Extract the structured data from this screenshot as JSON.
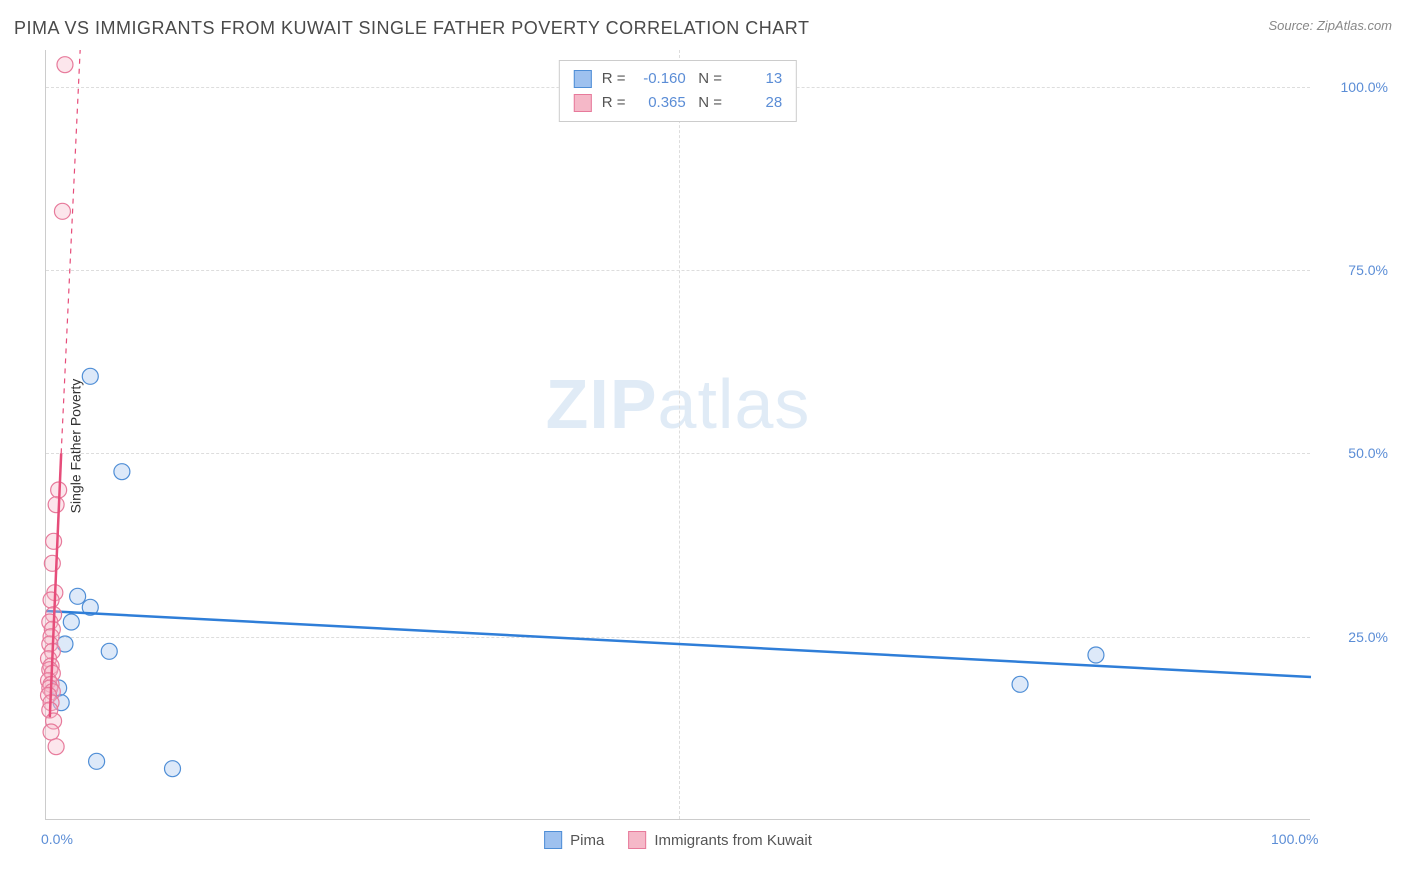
{
  "title": "PIMA VS IMMIGRANTS FROM KUWAIT SINGLE FATHER POVERTY CORRELATION CHART",
  "source": "Source: ZipAtlas.com",
  "watermark_bold": "ZIP",
  "watermark_light": "atlas",
  "ylabel": "Single Father Poverty",
  "chart": {
    "type": "scatter",
    "xlim": [
      0,
      100
    ],
    "ylim": [
      0,
      105
    ],
    "x_ticks": [
      {
        "value": 0,
        "label": "0.0%"
      },
      {
        "value": 100,
        "label": "100.0%"
      }
    ],
    "x_minor_ticks": [
      50
    ],
    "y_ticks": [
      {
        "value": 25,
        "label": "25.0%"
      },
      {
        "value": 50,
        "label": "50.0%"
      },
      {
        "value": 75,
        "label": "75.0%"
      },
      {
        "value": 100,
        "label": "100.0%"
      }
    ],
    "grid_color": "#dddddd",
    "background_color": "#ffffff",
    "marker_radius": 8,
    "marker_stroke_width": 1.2,
    "marker_fill_opacity": 0.35,
    "trend_line_width": 2.5,
    "series": [
      {
        "name": "Pima",
        "color_fill": "#9ec1ef",
        "color_stroke": "#4f8ed6",
        "trend_color": "#2f7ed8",
        "R": "-0.160",
        "N": "13",
        "trend": {
          "x1": 0,
          "y1": 28.5,
          "x2": 100,
          "y2": 19.5,
          "dashed": false
        },
        "points": [
          {
            "x": 3.5,
            "y": 60.5
          },
          {
            "x": 6.0,
            "y": 47.5
          },
          {
            "x": 2.5,
            "y": 30.5
          },
          {
            "x": 3.5,
            "y": 29.0
          },
          {
            "x": 5.0,
            "y": 23.0
          },
          {
            "x": 4.0,
            "y": 8.0
          },
          {
            "x": 10.0,
            "y": 7.0
          },
          {
            "x": 77.0,
            "y": 18.5
          },
          {
            "x": 83.0,
            "y": 22.5
          },
          {
            "x": 1.5,
            "y": 24.0
          },
          {
            "x": 2.0,
            "y": 27.0
          },
          {
            "x": 1.0,
            "y": 18.0
          },
          {
            "x": 1.2,
            "y": 16.0
          }
        ]
      },
      {
        "name": "Immigrants from Kuwait",
        "color_fill": "#f5b8c8",
        "color_stroke": "#e77a9b",
        "trend_color": "#e64d7a",
        "R": "0.365",
        "N": "28",
        "trend_segments": [
          {
            "x1": 0.3,
            "y1": 14,
            "x2": 1.2,
            "y2": 50,
            "dashed": false,
            "width": 2.5
          },
          {
            "x1": 1.2,
            "y1": 50,
            "x2": 2.7,
            "y2": 105,
            "dashed": true,
            "width": 1.2
          }
        ],
        "points": [
          {
            "x": 1.5,
            "y": 103.0
          },
          {
            "x": 1.3,
            "y": 83.0
          },
          {
            "x": 1.0,
            "y": 45.0
          },
          {
            "x": 0.8,
            "y": 43.0
          },
          {
            "x": 0.6,
            "y": 38.0
          },
          {
            "x": 0.5,
            "y": 35.0
          },
          {
            "x": 0.7,
            "y": 31.0
          },
          {
            "x": 0.4,
            "y": 30.0
          },
          {
            "x": 0.6,
            "y": 28.0
          },
          {
            "x": 0.3,
            "y": 27.0
          },
          {
            "x": 0.5,
            "y": 26.0
          },
          {
            "x": 0.4,
            "y": 25.0
          },
          {
            "x": 0.3,
            "y": 24.0
          },
          {
            "x": 0.5,
            "y": 23.0
          },
          {
            "x": 0.2,
            "y": 22.0
          },
          {
            "x": 0.4,
            "y": 21.0
          },
          {
            "x": 0.3,
            "y": 20.5
          },
          {
            "x": 0.5,
            "y": 20.0
          },
          {
            "x": 0.2,
            "y": 19.0
          },
          {
            "x": 0.4,
            "y": 18.5
          },
          {
            "x": 0.3,
            "y": 18.0
          },
          {
            "x": 0.5,
            "y": 17.5
          },
          {
            "x": 0.2,
            "y": 17.0
          },
          {
            "x": 0.4,
            "y": 16.0
          },
          {
            "x": 0.3,
            "y": 15.0
          },
          {
            "x": 0.6,
            "y": 13.5
          },
          {
            "x": 0.4,
            "y": 12.0
          },
          {
            "x": 0.8,
            "y": 10.0
          }
        ]
      }
    ]
  },
  "legend_top": {
    "r_label": "R =",
    "n_label": "N ="
  },
  "legend_bottom": [
    {
      "label": "Pima",
      "series_index": 0
    },
    {
      "label": "Immigrants from Kuwait",
      "series_index": 1
    }
  ]
}
